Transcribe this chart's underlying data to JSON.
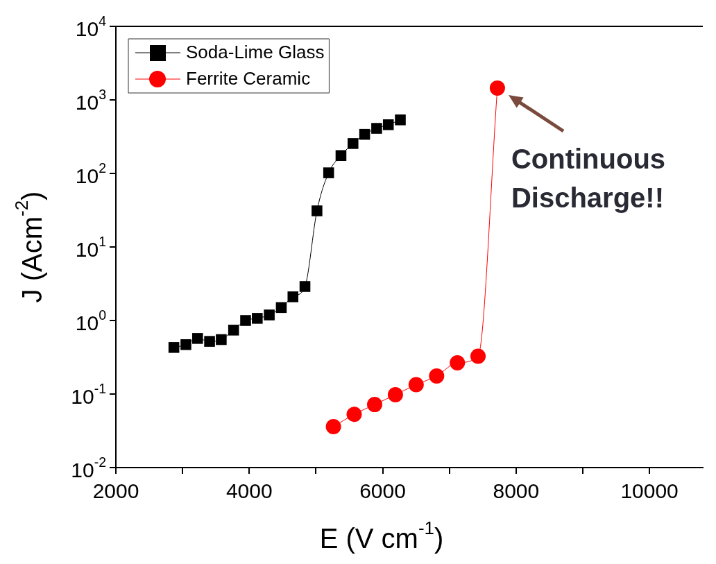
{
  "chart_data": {
    "type": "line",
    "xlabel": "E (V cm$^{-1}$)",
    "ylabel": "J (Acm$^{-2}$)",
    "xlim": [
      2000,
      10800
    ],
    "xticks": [
      2000,
      {
        "value": 3000,
        "label": null
      },
      4000,
      {
        "value": 5000,
        "label": null
      },
      6000,
      {
        "value": 7000,
        "label": null
      },
      8000,
      {
        "value": 9000,
        "label": null
      },
      10000
    ],
    "ylim": [
      0.01,
      10000
    ],
    "log": "y",
    "yticks": [
      {
        "value": 0.01,
        "label": "10$^{-2}$"
      },
      {
        "value": 0.1,
        "label": "10$^{-1}$"
      },
      {
        "value": 1,
        "label": "10$^{0}$"
      },
      {
        "value": 10,
        "label": "10$^{1}$"
      },
      {
        "value": 100,
        "label": "10$^{2}$"
      },
      {
        "value": 1000,
        "label": "10$^{3}$"
      },
      {
        "value": 10000,
        "label": "10$^{4}$"
      }
    ],
    "grid": false,
    "legend": "top left",
    "line_style": "solid",
    "series": [
      {
        "name": "Soda-Lime Glass",
        "marker": "square",
        "color": "#000000",
        "x": [
          2870,
          3050,
          3225,
          3405,
          3580,
          3765,
          3945,
          4120,
          4300,
          4480,
          4655,
          4835,
          5015,
          5190,
          5375,
          5555,
          5730,
          5910,
          6085,
          6265
        ],
        "values": [
          0.43,
          0.47,
          0.57,
          0.52,
          0.55,
          0.74,
          1.0,
          1.07,
          1.19,
          1.5,
          2.1,
          2.9,
          31,
          102,
          175,
          255,
          340,
          410,
          460,
          535
        ]
      },
      {
        "name": "Ferrite Ceramic",
        "marker": "circle",
        "color": "#ff0000",
        "x": [
          5262,
          5573,
          5880,
          6191,
          6502,
          6809,
          7120,
          7430,
          7720
        ],
        "values": [
          0.036,
          0.053,
          0.072,
          0.098,
          0.134,
          0.176,
          0.266,
          0.327,
          1450
        ]
      }
    ],
    "annotations": [
      {
        "text": "Continuous Discharge!!",
        "x": 7720,
        "y": 1450
      }
    ]
  }
}
